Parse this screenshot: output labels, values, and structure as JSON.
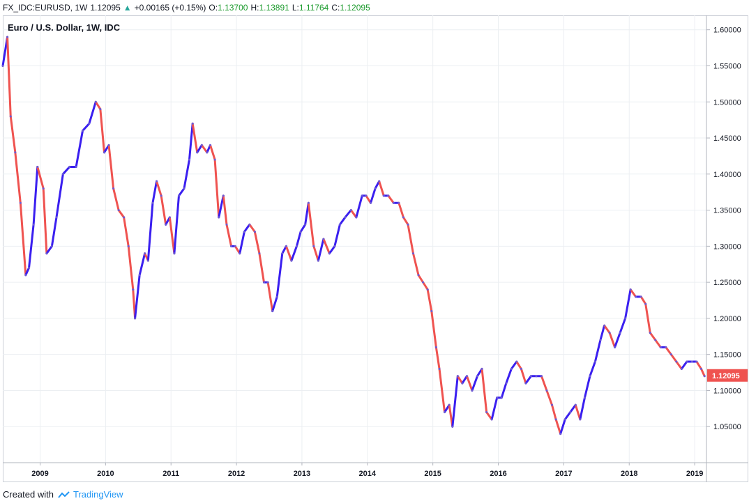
{
  "header": {
    "symbol": "FX_IDC:EURUSD, 1W",
    "last": "1.12095",
    "change": "+0.00165 (+0.15%)",
    "o_label": "O:",
    "o_value": "1.13700",
    "h_label": "H:",
    "h_value": "1.13891",
    "l_label": "L:",
    "l_value": "1.11764",
    "c_label": "C:",
    "c_value": "1.12095"
  },
  "footer": {
    "created_with": "Created with",
    "brand": "TradingView"
  },
  "colors": {
    "up": "#3a1ff0",
    "down": "#ef5350",
    "price_tag": "#ef5350"
  },
  "chart_data": {
    "type": "line",
    "title": "Euro / U.S. Dollar, 1W, IDC",
    "price_tag": "1.12095",
    "x_ticks": [
      "2009",
      "2010",
      "2011",
      "2012",
      "2013",
      "2014",
      "2015",
      "2016",
      "2017",
      "2018",
      "2019"
    ],
    "y_ticks": [
      "1.60000",
      "1.55000",
      "1.50000",
      "1.45000",
      "1.40000",
      "1.35000",
      "1.30000",
      "1.25000",
      "1.20000",
      "1.15000",
      "1.10000",
      "1.05000"
    ],
    "x_range": [
      2008.43,
      2019.18
    ],
    "ylim": [
      1.0,
      1.62
    ],
    "grid": true,
    "series": [
      {
        "values": [
          [
            2008.43,
            1.55
          ],
          [
            2008.5,
            1.59
          ],
          [
            2008.55,
            1.48
          ],
          [
            2008.62,
            1.43
          ],
          [
            2008.7,
            1.36
          ],
          [
            2008.78,
            1.26
          ],
          [
            2008.83,
            1.27
          ],
          [
            2008.9,
            1.33
          ],
          [
            2008.96,
            1.41
          ],
          [
            2009.05,
            1.38
          ],
          [
            2009.1,
            1.29
          ],
          [
            2009.18,
            1.3
          ],
          [
            2009.25,
            1.34
          ],
          [
            2009.35,
            1.4
          ],
          [
            2009.45,
            1.41
          ],
          [
            2009.55,
            1.41
          ],
          [
            2009.65,
            1.46
          ],
          [
            2009.75,
            1.47
          ],
          [
            2009.85,
            1.5
          ],
          [
            2009.92,
            1.49
          ],
          [
            2009.98,
            1.43
          ],
          [
            2010.05,
            1.44
          ],
          [
            2010.12,
            1.38
          ],
          [
            2010.2,
            1.35
          ],
          [
            2010.28,
            1.34
          ],
          [
            2010.35,
            1.3
          ],
          [
            2010.42,
            1.24
          ],
          [
            2010.45,
            1.2
          ],
          [
            2010.52,
            1.26
          ],
          [
            2010.6,
            1.29
          ],
          [
            2010.65,
            1.28
          ],
          [
            2010.72,
            1.36
          ],
          [
            2010.78,
            1.39
          ],
          [
            2010.85,
            1.37
          ],
          [
            2010.92,
            1.33
          ],
          [
            2010.98,
            1.34
          ],
          [
            2011.05,
            1.29
          ],
          [
            2011.12,
            1.37
          ],
          [
            2011.2,
            1.38
          ],
          [
            2011.28,
            1.42
          ],
          [
            2011.33,
            1.47
          ],
          [
            2011.4,
            1.43
          ],
          [
            2011.47,
            1.44
          ],
          [
            2011.55,
            1.43
          ],
          [
            2011.6,
            1.44
          ],
          [
            2011.67,
            1.42
          ],
          [
            2011.73,
            1.34
          ],
          [
            2011.8,
            1.37
          ],
          [
            2011.85,
            1.33
          ],
          [
            2011.92,
            1.3
          ],
          [
            2011.98,
            1.3
          ],
          [
            2012.05,
            1.29
          ],
          [
            2012.12,
            1.32
          ],
          [
            2012.2,
            1.33
          ],
          [
            2012.28,
            1.32
          ],
          [
            2012.35,
            1.29
          ],
          [
            2012.42,
            1.25
          ],
          [
            2012.48,
            1.25
          ],
          [
            2012.55,
            1.21
          ],
          [
            2012.62,
            1.23
          ],
          [
            2012.7,
            1.29
          ],
          [
            2012.76,
            1.3
          ],
          [
            2012.84,
            1.28
          ],
          [
            2012.92,
            1.3
          ],
          [
            2012.98,
            1.32
          ],
          [
            2013.05,
            1.33
          ],
          [
            2013.1,
            1.36
          ],
          [
            2013.18,
            1.3
          ],
          [
            2013.25,
            1.28
          ],
          [
            2013.33,
            1.31
          ],
          [
            2013.42,
            1.29
          ],
          [
            2013.5,
            1.3
          ],
          [
            2013.58,
            1.33
          ],
          [
            2013.66,
            1.34
          ],
          [
            2013.75,
            1.35
          ],
          [
            2013.83,
            1.34
          ],
          [
            2013.92,
            1.37
          ],
          [
            2013.98,
            1.37
          ],
          [
            2014.05,
            1.36
          ],
          [
            2014.12,
            1.38
          ],
          [
            2014.18,
            1.39
          ],
          [
            2014.25,
            1.37
          ],
          [
            2014.32,
            1.37
          ],
          [
            2014.4,
            1.36
          ],
          [
            2014.48,
            1.36
          ],
          [
            2014.55,
            1.34
          ],
          [
            2014.62,
            1.33
          ],
          [
            2014.7,
            1.29
          ],
          [
            2014.78,
            1.26
          ],
          [
            2014.85,
            1.25
          ],
          [
            2014.92,
            1.24
          ],
          [
            2014.98,
            1.21
          ],
          [
            2015.05,
            1.16
          ],
          [
            2015.1,
            1.13
          ],
          [
            2015.18,
            1.07
          ],
          [
            2015.25,
            1.08
          ],
          [
            2015.3,
            1.05
          ],
          [
            2015.38,
            1.12
          ],
          [
            2015.45,
            1.11
          ],
          [
            2015.52,
            1.12
          ],
          [
            2015.6,
            1.1
          ],
          [
            2015.68,
            1.12
          ],
          [
            2015.75,
            1.13
          ],
          [
            2015.82,
            1.07
          ],
          [
            2015.9,
            1.06
          ],
          [
            2015.98,
            1.09
          ],
          [
            2016.05,
            1.09
          ],
          [
            2016.12,
            1.11
          ],
          [
            2016.2,
            1.13
          ],
          [
            2016.28,
            1.14
          ],
          [
            2016.35,
            1.13
          ],
          [
            2016.42,
            1.11
          ],
          [
            2016.5,
            1.12
          ],
          [
            2016.58,
            1.12
          ],
          [
            2016.66,
            1.12
          ],
          [
            2016.74,
            1.1
          ],
          [
            2016.82,
            1.08
          ],
          [
            2016.88,
            1.06
          ],
          [
            2016.95,
            1.04
          ],
          [
            2017.02,
            1.06
          ],
          [
            2017.1,
            1.07
          ],
          [
            2017.18,
            1.08
          ],
          [
            2017.25,
            1.06
          ],
          [
            2017.32,
            1.09
          ],
          [
            2017.4,
            1.12
          ],
          [
            2017.48,
            1.14
          ],
          [
            2017.56,
            1.17
          ],
          [
            2017.62,
            1.19
          ],
          [
            2017.7,
            1.18
          ],
          [
            2017.78,
            1.16
          ],
          [
            2017.86,
            1.18
          ],
          [
            2017.94,
            1.2
          ],
          [
            2018.02,
            1.24
          ],
          [
            2018.1,
            1.23
          ],
          [
            2018.18,
            1.23
          ],
          [
            2018.25,
            1.22
          ],
          [
            2018.32,
            1.18
          ],
          [
            2018.4,
            1.17
          ],
          [
            2018.48,
            1.16
          ],
          [
            2018.56,
            1.16
          ],
          [
            2018.64,
            1.15
          ],
          [
            2018.72,
            1.14
          ],
          [
            2018.8,
            1.13
          ],
          [
            2018.88,
            1.14
          ],
          [
            2018.96,
            1.14
          ],
          [
            2019.03,
            1.14
          ],
          [
            2019.1,
            1.13
          ],
          [
            2019.15,
            1.12
          ]
        ]
      }
    ]
  }
}
